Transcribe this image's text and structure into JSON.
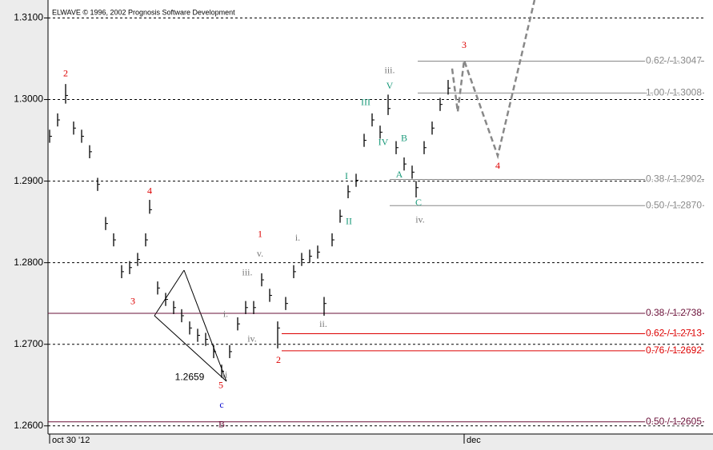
{
  "chart_data": {
    "type": "ohlc",
    "title": "ELWAVE © 1996, 2002 Prognosis Software Development",
    "xlim": [
      0,
      820
    ],
    "ylim": [
      1.259,
      1.3122
    ],
    "xticks": [
      {
        "value": 2,
        "label": "oct 30 '12"
      },
      {
        "value": 520,
        "label": "dec"
      }
    ],
    "yticks": [
      {
        "value": 1.26,
        "label": "1.2600"
      },
      {
        "value": 1.27,
        "label": "1.2700"
      },
      {
        "value": 1.28,
        "label": "1.2800"
      },
      {
        "value": 1.29,
        "label": "1.2900"
      },
      {
        "value": 1.3,
        "label": "1.3000"
      },
      {
        "value": 1.31,
        "label": "1.3100"
      }
    ],
    "grid": true,
    "bars": {
      "color": "#000000",
      "x": [
        2,
        12,
        22,
        32,
        42,
        52,
        62,
        72,
        82,
        92,
        102,
        112,
        122,
        127,
        137,
        147,
        157,
        167,
        177,
        187,
        197,
        207,
        217,
        227,
        237,
        247,
        257,
        267,
        277,
        287,
        297,
        307,
        317,
        327,
        337,
        345,
        355,
        365,
        375,
        385,
        395,
        405,
        415,
        425,
        435,
        445,
        455,
        460,
        470,
        480,
        490,
        500
      ],
      "high": [
        1.2963,
        1.2983,
        1.3019,
        1.2973,
        1.2963,
        1.2944,
        1.2904,
        1.2856,
        1.2836,
        1.2797,
        1.2802,
        1.2812,
        1.2836,
        1.2877,
        1.2777,
        1.2763,
        1.2753,
        1.2743,
        1.2728,
        1.2719,
        1.2714,
        1.2699,
        1.2675,
        1.2699,
        1.2733,
        1.2753,
        1.2753,
        1.2787,
        1.2768,
        1.2728,
        1.2758,
        1.2797,
        1.2812,
        1.2816,
        1.2821,
        1.2758,
        1.2836,
        1.2865,
        1.2895,
        1.2909,
        1.2958,
        1.2983,
        1.2968,
        1.3006,
        1.2949,
        1.2929,
        1.2919,
        1.29,
        1.2949,
        1.2973,
        1.3002,
        1.3024
      ],
      "low": [
        1.2947,
        1.2967,
        1.2995,
        1.2957,
        1.2947,
        1.2928,
        1.2888,
        1.284,
        1.282,
        1.2781,
        1.2786,
        1.2796,
        1.282,
        1.286,
        1.2761,
        1.2747,
        1.2737,
        1.2727,
        1.2712,
        1.2703,
        1.2698,
        1.2683,
        1.2659,
        1.2683,
        1.2717,
        1.2737,
        1.2737,
        1.2771,
        1.2752,
        1.2695,
        1.2742,
        1.2781,
        1.2796,
        1.28,
        1.2805,
        1.2735,
        1.282,
        1.2849,
        1.2879,
        1.2893,
        1.2942,
        1.2967,
        1.2952,
        1.2981,
        1.2933,
        1.2913,
        1.2903,
        1.288,
        1.2933,
        1.2957,
        1.2986,
        1.3006
      ],
      "close": [
        1.2955,
        1.2975,
        1.3005,
        1.2965,
        1.2955,
        1.2936,
        1.2896,
        1.2848,
        1.2828,
        1.2789,
        1.2794,
        1.2804,
        1.2828,
        1.2865,
        1.2769,
        1.2755,
        1.2745,
        1.2735,
        1.272,
        1.2711,
        1.2706,
        1.2691,
        1.2667,
        1.2691,
        1.2725,
        1.2745,
        1.2745,
        1.2779,
        1.276,
        1.272,
        1.275,
        1.2789,
        1.2804,
        1.2808,
        1.2813,
        1.275,
        1.2828,
        1.2857,
        1.2887,
        1.2901,
        1.295,
        1.2975,
        1.296,
        1.2989,
        1.2941,
        1.2921,
        1.2911,
        1.2892,
        1.2941,
        1.2965,
        1.2994,
        1.3014
      ]
    },
    "projection": {
      "color": "#888888",
      "x": [
        505,
        512,
        520,
        562,
        608
      ],
      "values": [
        1.3038,
        1.2985,
        1.3048,
        1.2931,
        1.3122
      ]
    },
    "levels": [
      {
        "value": 1.3047,
        "label": "0.62 / 1.3047",
        "color": "#888888",
        "start": 462
      },
      {
        "value": 1.3008,
        "label": "1.00 / 1.3008",
        "color": "#888888",
        "start": 462
      },
      {
        "value": 1.2902,
        "label": "0.38 / 1.2902",
        "color": "#888888",
        "start": 427
      },
      {
        "value": 1.287,
        "label": "0.50 / 1.2870",
        "color": "#888888",
        "start": 427
      },
      {
        "value": 1.2738,
        "label": "0.38 / 1.2738",
        "color": "#6a1038",
        "start": 0
      },
      {
        "value": 1.2713,
        "label": "0.62 / 1.2713",
        "color": "#dd0000",
        "start": 292
      },
      {
        "value": 1.2692,
        "label": "0.76 / 1.2692",
        "color": "#dd0000",
        "start": 292
      },
      {
        "value": 1.2605,
        "label": "0.50 / 1.2605",
        "color": "#6a1038",
        "start": 0
      }
    ],
    "annotations": [
      {
        "text": "2",
        "x": 22,
        "y": 1.3031,
        "color": "#dd0000"
      },
      {
        "text": "4",
        "x": 127,
        "y": 1.2887,
        "color": "#dd0000"
      },
      {
        "text": "3",
        "x": 106,
        "y": 1.2752,
        "color": "#dd0000"
      },
      {
        "text": "5",
        "x": 216,
        "y": 1.2649,
        "color": "#dd0000"
      },
      {
        "text": "1",
        "x": 265,
        "y": 1.2834,
        "color": "#dd0000"
      },
      {
        "text": "2",
        "x": 288,
        "y": 1.268,
        "color": "#dd0000"
      },
      {
        "text": "3",
        "x": 520,
        "y": 1.3066,
        "color": "#dd0000"
      },
      {
        "text": "4",
        "x": 562,
        "y": 1.2918,
        "color": "#dd0000"
      },
      {
        "text": "iii.",
        "x": 249,
        "y": 1.2787,
        "color": "#777777"
      },
      {
        "text": "v.",
        "x": 265,
        "y": 1.281,
        "color": "#777777"
      },
      {
        "text": "i.",
        "x": 222,
        "y": 1.2736,
        "color": "#777777"
      },
      {
        "text": "iv.",
        "x": 255,
        "y": 1.2706,
        "color": "#777777"
      },
      {
        "text": "i.",
        "x": 312,
        "y": 1.283,
        "color": "#777777"
      },
      {
        "text": "ii.",
        "x": 344,
        "y": 1.2724,
        "color": "#777777"
      },
      {
        "text": "iii.",
        "x": 427,
        "y": 1.3035,
        "color": "#777777"
      },
      {
        "text": "iv.",
        "x": 465,
        "y": 1.2852,
        "color": "#777777"
      },
      {
        "text": "ii",
        "x": 221,
        "y": 1.2662,
        "color": "#777777"
      },
      {
        "text": "III",
        "x": 397,
        "y": 1.2996,
        "color": "#1a9a7a"
      },
      {
        "text": "V",
        "x": 427,
        "y": 1.3016,
        "color": "#1a9a7a"
      },
      {
        "text": "IV",
        "x": 419,
        "y": 1.2947,
        "color": "#1a9a7a"
      },
      {
        "text": "B",
        "x": 445,
        "y": 1.2952,
        "color": "#1a9a7a"
      },
      {
        "text": "A",
        "x": 439,
        "y": 1.2907,
        "color": "#1a9a7a"
      },
      {
        "text": "C",
        "x": 463,
        "y": 1.2873,
        "color": "#1a9a7a"
      },
      {
        "text": "I",
        "x": 373,
        "y": 1.2905,
        "color": "#1a9a7a"
      },
      {
        "text": "II",
        "x": 376,
        "y": 1.285,
        "color": "#1a9a7a"
      },
      {
        "text": "c",
        "x": 217,
        "y": 1.2625,
        "color": "#0000cc"
      },
      {
        "text": "B",
        "x": 217,
        "y": 1.2601,
        "color": "#6a1038"
      },
      {
        "text": "1.2659",
        "x": 177,
        "y": 1.2659,
        "color": "#000000"
      }
    ]
  }
}
